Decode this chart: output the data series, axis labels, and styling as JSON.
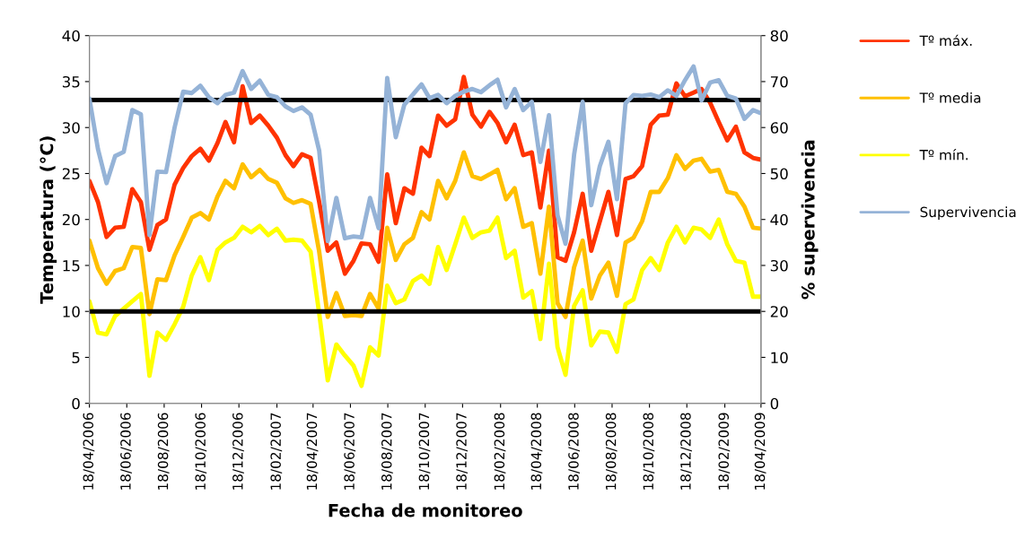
{
  "chart_data": {
    "type": "line",
    "xlabel": "Fecha de monitoreo",
    "ylabel": "Temperatura (°C)",
    "y2label": "% supervivencia",
    "x": [
      "2006-04-18",
      "2006-05-02",
      "2006-05-16",
      "2006-05-30",
      "2006-06-13",
      "2006-06-27",
      "2006-07-11",
      "2006-07-25",
      "2006-08-07",
      "2006-08-21",
      "2006-09-04",
      "2006-09-18",
      "2006-10-02",
      "2006-10-16",
      "2006-10-30",
      "2006-11-13",
      "2006-11-26",
      "2006-12-10",
      "2006-12-24",
      "2007-01-07",
      "2007-01-21",
      "2007-02-04",
      "2007-02-18",
      "2007-03-04",
      "2007-03-17",
      "2007-03-31",
      "2007-04-14",
      "2007-04-28",
      "2007-05-12",
      "2007-05-26",
      "2007-06-09",
      "2007-06-23",
      "2007-07-06",
      "2007-07-20",
      "2007-08-03",
      "2007-08-17",
      "2007-08-31",
      "2007-09-14",
      "2007-09-28",
      "2007-10-12",
      "2007-10-25",
      "2007-11-08",
      "2007-11-22",
      "2007-12-06",
      "2007-12-20",
      "2008-01-03",
      "2008-01-17",
      "2008-01-31",
      "2008-02-13",
      "2008-02-27",
      "2008-03-12",
      "2008-03-26",
      "2008-04-09",
      "2008-04-23",
      "2008-05-07",
      "2008-05-21",
      "2008-06-03",
      "2008-06-17",
      "2008-07-01",
      "2008-07-15",
      "2008-07-29",
      "2008-08-12",
      "2008-08-26",
      "2008-09-09",
      "2008-09-22",
      "2008-10-06",
      "2008-10-20",
      "2008-11-03",
      "2008-11-17",
      "2008-12-01",
      "2008-12-15",
      "2008-12-29",
      "2009-01-11",
      "2009-01-25",
      "2009-02-08",
      "2009-02-22",
      "2009-03-08",
      "2009-03-22",
      "2009-04-05",
      "2009-04-18"
    ],
    "series": [
      {
        "name": "Tº máx.",
        "color": "#ff3300",
        "values": [
          24.2,
          21.9,
          18.1,
          19.1,
          19.2,
          23.3,
          21.9,
          16.7,
          19.4,
          20.0,
          23.8,
          25.6,
          26.9,
          27.7,
          26.4,
          28.3,
          30.6,
          28.4,
          34.5,
          30.5,
          31.3,
          30.2,
          28.9,
          27.0,
          25.8,
          27.1,
          26.7,
          21.9,
          16.6,
          17.5,
          14.1,
          15.5,
          17.4,
          17.3,
          15.4,
          24.9,
          19.6,
          23.4,
          22.8,
          27.8,
          26.9,
          31.3,
          30.2,
          30.9,
          35.5,
          31.4,
          30.1,
          31.7,
          30.5,
          28.4,
          30.3,
          27.0,
          27.3,
          21.3,
          27.5,
          15.9,
          15.5,
          18.6,
          22.8,
          16.6,
          19.8,
          23.0,
          18.3,
          24.4,
          24.7,
          25.8,
          30.3,
          31.3,
          31.4,
          34.8,
          33.4,
          33.8,
          34.2,
          32.7,
          30.6,
          28.6,
          30.1,
          27.3,
          26.7,
          26.5
        ]
      },
      {
        "name": "Tº media",
        "color": "#ffc000",
        "values": [
          17.7,
          14.7,
          13.0,
          14.4,
          14.7,
          17.0,
          16.9,
          9.7,
          13.5,
          13.4,
          16.1,
          18.1,
          20.2,
          20.7,
          20.0,
          22.5,
          24.2,
          23.4,
          26.0,
          24.6,
          25.4,
          24.4,
          24.0,
          22.3,
          21.8,
          22.1,
          21.7,
          16.5,
          9.4,
          12.0,
          9.5,
          9.6,
          9.5,
          11.9,
          10.3,
          19.1,
          15.6,
          17.3,
          18.0,
          20.8,
          20.0,
          24.2,
          22.3,
          24.2,
          27.3,
          24.7,
          24.4,
          24.9,
          25.4,
          22.2,
          23.4,
          19.2,
          19.6,
          14.1,
          21.4,
          10.9,
          9.4,
          14.8,
          17.7,
          11.4,
          13.9,
          15.3,
          11.7,
          17.5,
          18.0,
          19.8,
          23.0,
          23.0,
          24.5,
          27.0,
          25.5,
          26.4,
          26.6,
          25.2,
          25.4,
          23.0,
          22.8,
          21.4,
          19.1,
          19.0
        ]
      },
      {
        "name": "Tº mín.",
        "color": "#ffff00",
        "values": [
          11.1,
          7.7,
          7.5,
          9.5,
          10.3,
          11.1,
          11.9,
          3.0,
          7.7,
          6.9,
          8.6,
          10.5,
          13.9,
          15.9,
          13.4,
          16.7,
          17.5,
          18.0,
          19.2,
          18.6,
          19.3,
          18.3,
          19.0,
          17.7,
          17.8,
          17.7,
          16.5,
          9.8,
          2.5,
          6.4,
          5.2,
          4.1,
          1.9,
          6.1,
          5.2,
          12.8,
          10.9,
          11.3,
          13.3,
          13.9,
          13.0,
          17.0,
          14.5,
          17.3,
          20.2,
          18.0,
          18.6,
          18.8,
          20.2,
          15.8,
          16.6,
          11.5,
          12.2,
          7.0,
          15.2,
          6.1,
          3.1,
          10.6,
          12.3,
          6.3,
          7.8,
          7.7,
          5.6,
          10.8,
          11.3,
          14.5,
          15.8,
          14.5,
          17.5,
          19.2,
          17.5,
          19.1,
          18.9,
          18.0,
          20.0,
          17.3,
          15.5,
          15.3,
          11.6,
          11.6
        ]
      },
      {
        "name": "Supervivencia",
        "color": "#95b3d7",
        "axis": "y2",
        "values": [
          66.3,
          55.3,
          47.9,
          53.8,
          54.7,
          63.8,
          62.9,
          36.6,
          50.4,
          50.3,
          60.0,
          67.8,
          67.5,
          69.1,
          66.6,
          65.3,
          67.1,
          67.6,
          72.3,
          68.4,
          70.2,
          67.1,
          66.6,
          64.6,
          63.6,
          64.4,
          62.8,
          55.0,
          35.3,
          44.7,
          35.9,
          36.3,
          36.1,
          44.7,
          38.1,
          70.8,
          57.9,
          65.0,
          67.2,
          69.4,
          66.4,
          67.1,
          65.3,
          66.9,
          67.8,
          68.4,
          67.7,
          69.2,
          70.4,
          64.4,
          68.4,
          63.8,
          65.6,
          52.5,
          62.7,
          40.9,
          34.7,
          54.1,
          65.6,
          43.1,
          51.6,
          56.9,
          44.4,
          65.3,
          67.1,
          66.9,
          67.2,
          66.6,
          68.1,
          66.9,
          70.3,
          73.3,
          65.9,
          69.8,
          70.3,
          66.9,
          66.3,
          61.9,
          63.8,
          63.1
        ]
      }
    ],
    "xlim": [
      "2006-04-18",
      "2009-04-18"
    ],
    "xticks": [
      {
        "value": "2006-04-18",
        "label": "18/04/2006"
      },
      {
        "value": "2006-06-18",
        "label": "18/06/2006"
      },
      {
        "value": "2006-08-18",
        "label": "18/08/2006"
      },
      {
        "value": "2006-10-18",
        "label": "18/10/2006"
      },
      {
        "value": "2006-12-18",
        "label": "18/12/2006"
      },
      {
        "value": "2007-02-18",
        "label": "18/02/2007"
      },
      {
        "value": "2007-04-18",
        "label": "18/04/2007"
      },
      {
        "value": "2007-06-18",
        "label": "18/06/2007"
      },
      {
        "value": "2007-08-18",
        "label": "18/08/2007"
      },
      {
        "value": "2007-10-18",
        "label": "18/10/2007"
      },
      {
        "value": "2007-12-18",
        "label": "18/12/2007"
      },
      {
        "value": "2008-02-18",
        "label": "18/02/2008"
      },
      {
        "value": "2008-04-18",
        "label": "18/04/2008"
      },
      {
        "value": "2008-06-18",
        "label": "18/06/2008"
      },
      {
        "value": "2008-08-18",
        "label": "18/08/2008"
      },
      {
        "value": "2008-10-18",
        "label": "18/10/2008"
      },
      {
        "value": "2008-12-18",
        "label": "18/12/2008"
      },
      {
        "value": "2009-02-18",
        "label": "18/02/2009"
      },
      {
        "value": "2009-04-18",
        "label": "18/04/2009"
      }
    ],
    "ylim": [
      0,
      40
    ],
    "yticks": [
      0,
      5,
      10,
      15,
      20,
      25,
      30,
      35,
      40
    ],
    "y2lim": [
      0,
      80
    ],
    "y2ticks": [
      0,
      10,
      20,
      30,
      40,
      50,
      60,
      70,
      80
    ],
    "ref_lines": [
      {
        "axis": "y",
        "value": 33,
        "color": "#000000"
      },
      {
        "axis": "y",
        "value": 10,
        "color": "#000000"
      }
    ],
    "legend": "right",
    "grid": false,
    "marker": "none",
    "line_style": "solid"
  }
}
